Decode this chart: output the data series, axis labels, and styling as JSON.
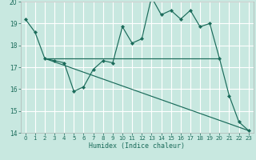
{
  "title": "",
  "xlabel": "Humidex (Indice chaleur)",
  "bg_color": "#c8e8e0",
  "grid_color": "#ffffff",
  "line_color": "#1a6b5a",
  "xlim": [
    -0.5,
    23.5
  ],
  "ylim": [
    14,
    20
  ],
  "yticks": [
    14,
    15,
    16,
    17,
    18,
    19,
    20
  ],
  "xticks": [
    0,
    1,
    2,
    3,
    4,
    5,
    6,
    7,
    8,
    9,
    10,
    11,
    12,
    13,
    14,
    15,
    16,
    17,
    18,
    19,
    20,
    21,
    22,
    23
  ],
  "line1_x": [
    0,
    1,
    2,
    3,
    4,
    5,
    6,
    7,
    8,
    9,
    10,
    11,
    12,
    13,
    14,
    15,
    16,
    17,
    18,
    19,
    20,
    21,
    22,
    23
  ],
  "line1_y": [
    19.2,
    18.6,
    17.4,
    17.3,
    17.2,
    15.9,
    16.1,
    16.9,
    17.3,
    17.2,
    18.85,
    18.1,
    18.3,
    20.2,
    19.4,
    19.6,
    19.2,
    19.6,
    18.85,
    19.0,
    17.4,
    15.7,
    14.5,
    14.1
  ],
  "line2_x": [
    2,
    20
  ],
  "line2_y": [
    17.4,
    17.4
  ],
  "line3_x": [
    2,
    23
  ],
  "line3_y": [
    17.4,
    14.1
  ]
}
